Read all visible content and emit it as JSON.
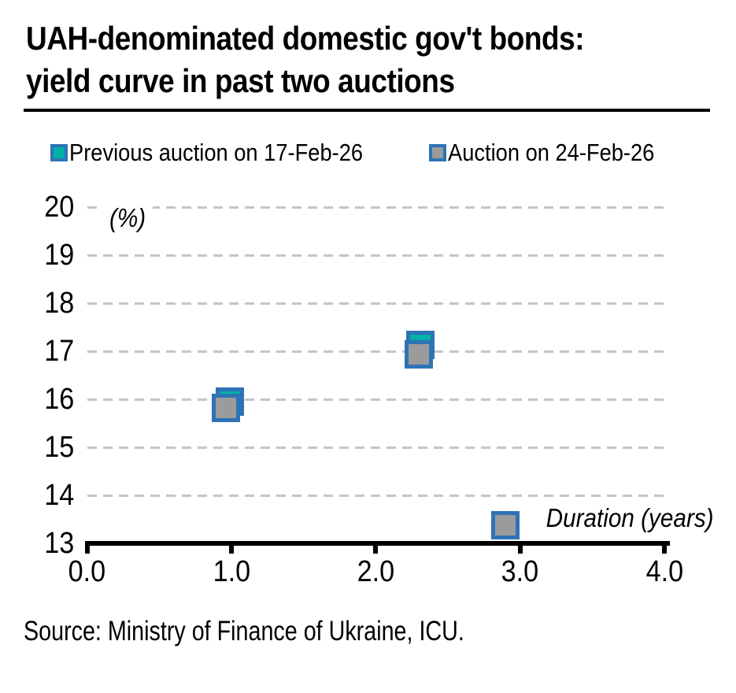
{
  "page": {
    "background": "#ffffff"
  },
  "title": {
    "line1": "UAH-denominated domestic gov't bonds:",
    "line2": "yield curve in past two auctions"
  },
  "legend": {
    "items": [
      {
        "label": "Previous auction on 17-Feb-26",
        "fill": "#00b2a5",
        "border": "#2e73b5"
      },
      {
        "label": "Auction on 24-Feb-26",
        "fill": "#9b9b9b",
        "border": "#2e73b5"
      }
    ]
  },
  "annotations": {
    "y_unit_label": "(%)",
    "x_axis_label": "Duration (years)"
  },
  "source": {
    "text": "Source: Ministry of Finance of Ukraine, ICU."
  },
  "chart_data": {
    "type": "scatter",
    "title": "UAH-denominated domestic gov't bonds: yield curve in past two auctions",
    "xlabel": "Duration (years)",
    "ylabel": "(%)",
    "xlim": [
      0.0,
      4.0
    ],
    "ylim": [
      13,
      20
    ],
    "x_ticks": [
      0.0,
      1.0,
      2.0,
      3.0,
      4.0
    ],
    "x_tick_labels": [
      "0.0",
      "1.0",
      "2.0",
      "3.0",
      "4.0"
    ],
    "y_ticks": [
      13,
      14,
      15,
      16,
      17,
      18,
      19,
      20
    ],
    "y_gridlines": [
      14,
      15,
      16,
      17,
      18,
      19,
      20
    ],
    "grid": {
      "horizontal": true,
      "style": "dashed",
      "color": "#c3c6c6"
    },
    "legend_position": "top",
    "marker_shape": "square",
    "axis_color": "#000000",
    "series": [
      {
        "name": "Previous auction on 17-Feb-26",
        "fill": "#00b2a5",
        "border": "#2e73b5",
        "points": [
          {
            "x": 0.99,
            "y": 15.95
          },
          {
            "x": 2.31,
            "y": 17.13
          }
        ]
      },
      {
        "name": "Auction on 24-Feb-26",
        "fill": "#9b9b9b",
        "border": "#2e73b5",
        "points": [
          {
            "x": 0.96,
            "y": 15.82
          },
          {
            "x": 2.3,
            "y": 16.93
          },
          {
            "x": 2.9,
            "y": 13.38
          }
        ]
      }
    ]
  }
}
